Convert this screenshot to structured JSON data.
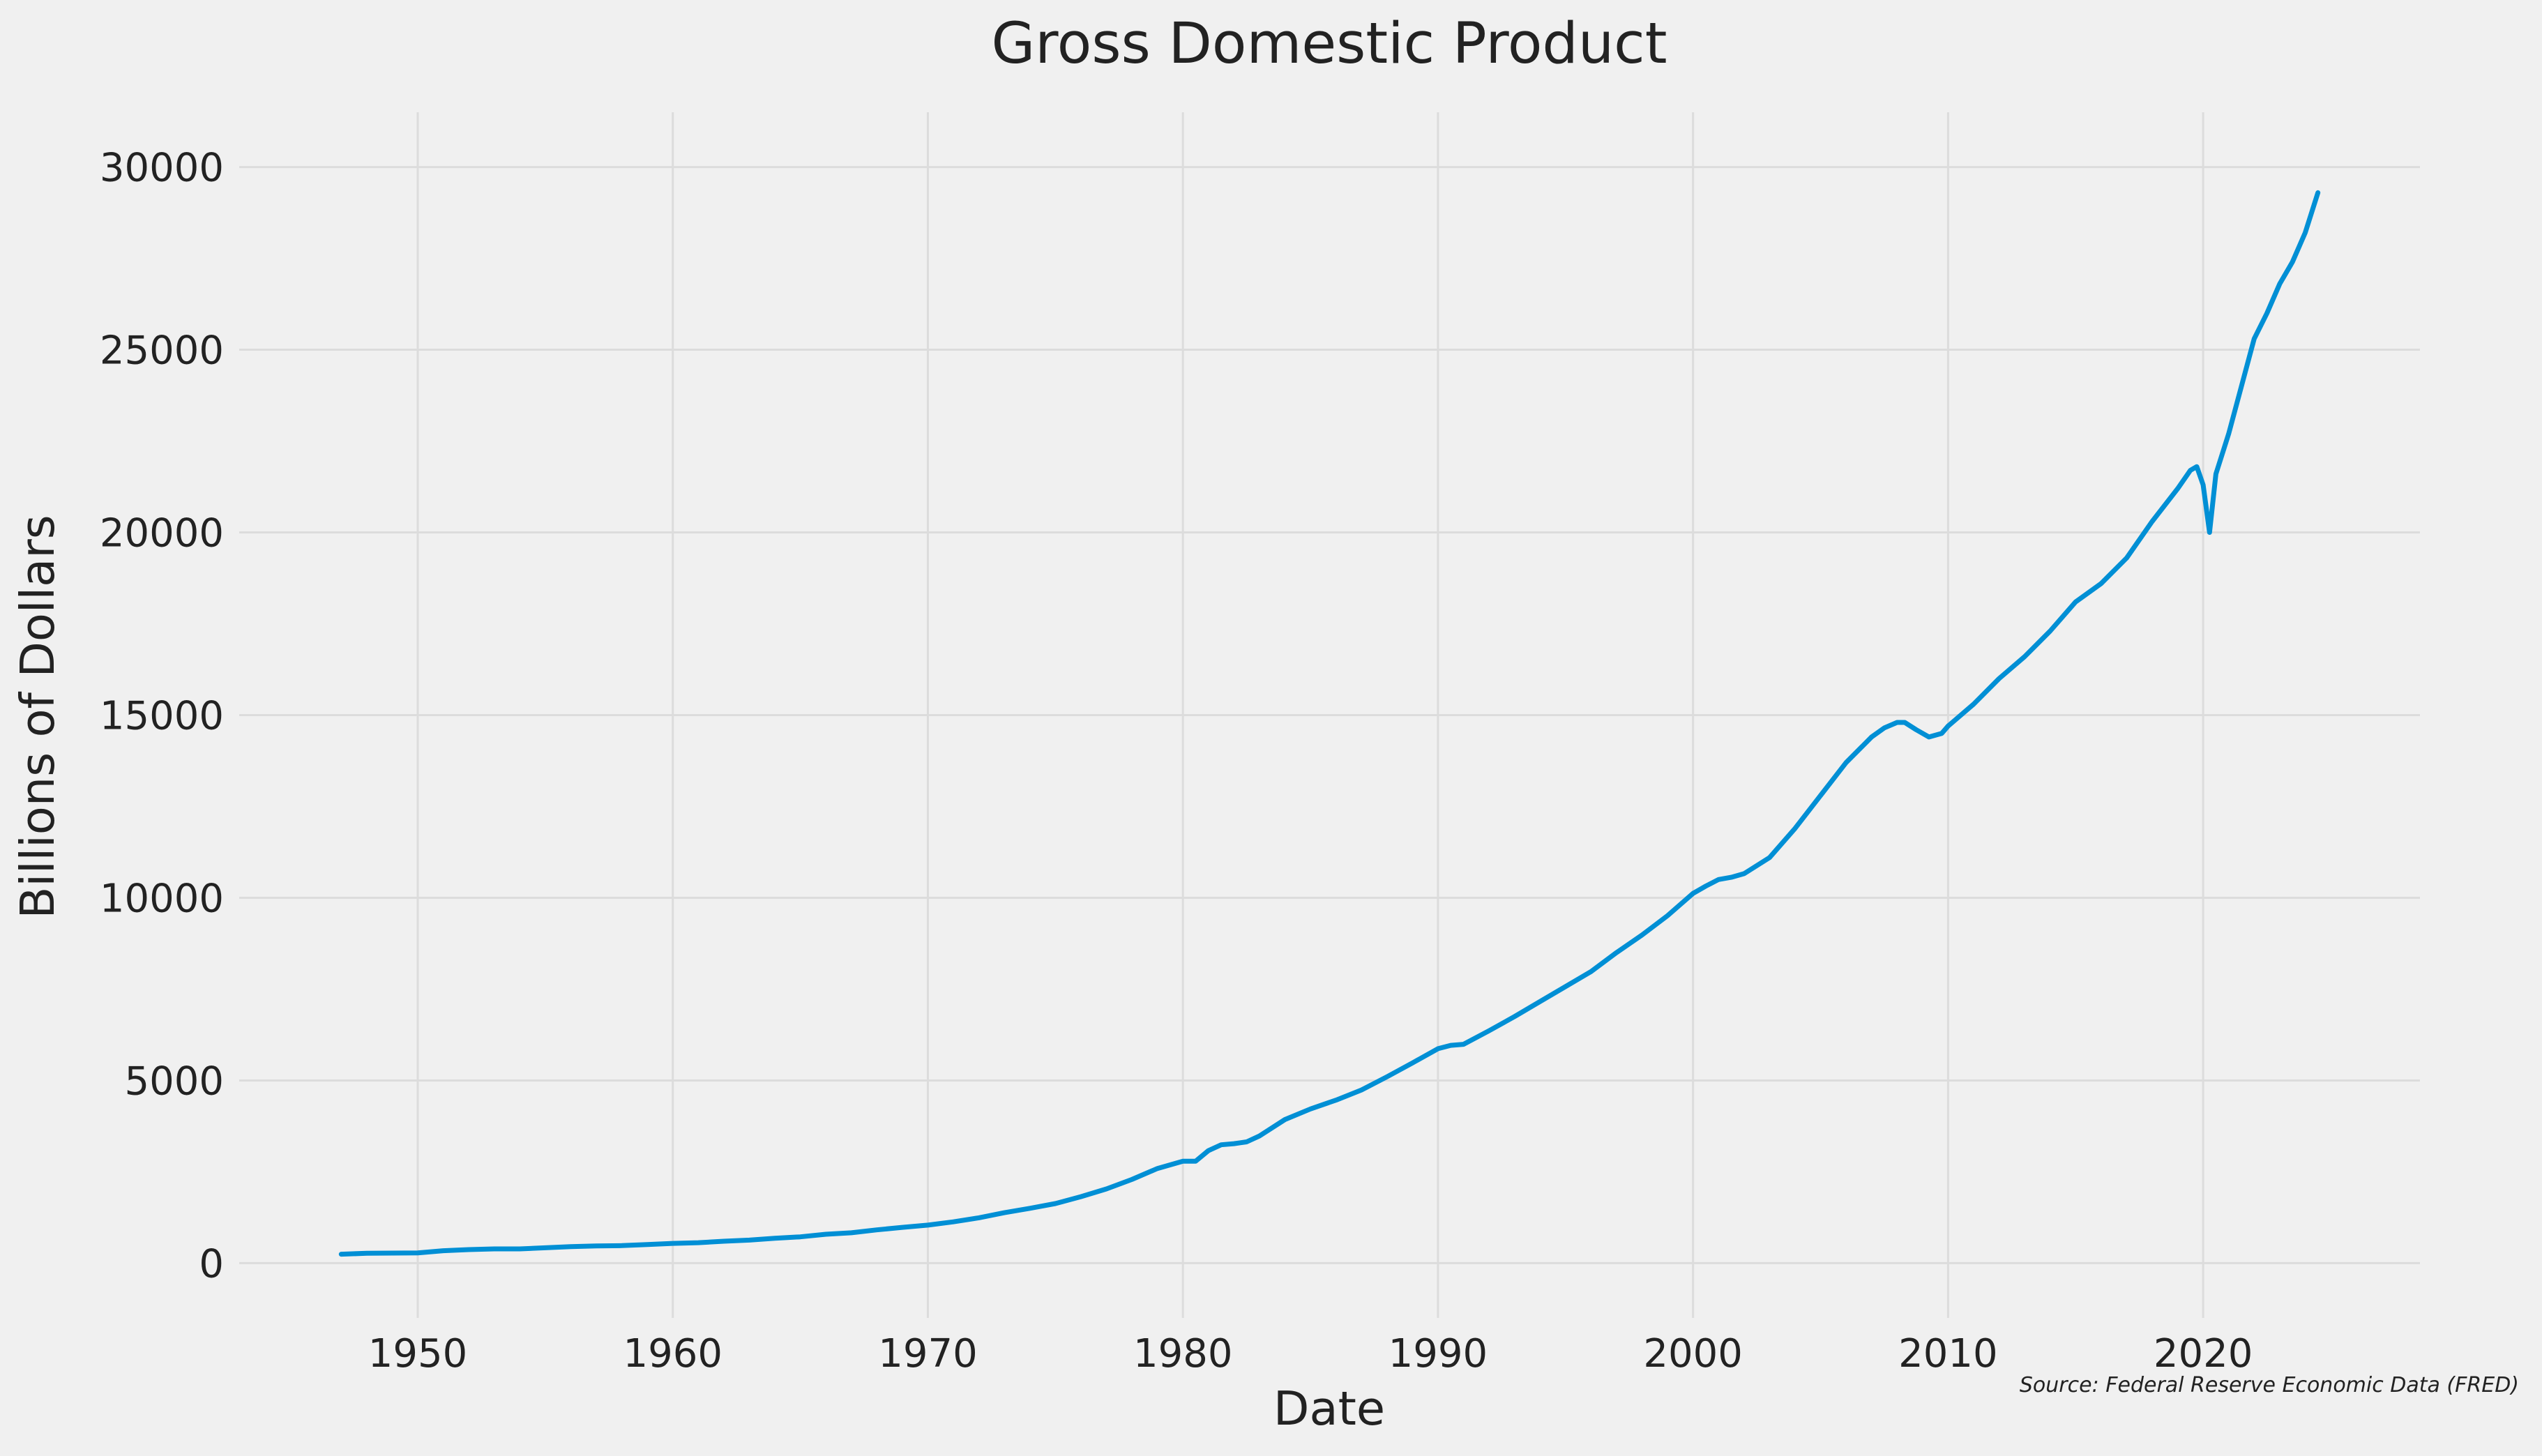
{
  "chart_data": {
    "type": "line",
    "title": "Gross Domestic Product",
    "xlabel": "Date",
    "ylabel": "Billions of Dollars",
    "source": "Source: Federal Reserve Economic Data (FRED)",
    "xlim": [
      1943,
      2028.5
    ],
    "ylim": [
      -1500,
      31500
    ],
    "x_ticks": [
      1950,
      1960,
      1970,
      1980,
      1990,
      2000,
      2010,
      2020
    ],
    "y_ticks": [
      0,
      5000,
      10000,
      15000,
      20000,
      25000,
      30000
    ],
    "x_tick_labels": [
      "1950",
      "1960",
      "1970",
      "1980",
      "1990",
      "2000",
      "2010",
      "2020"
    ],
    "y_tick_labels": [
      "0",
      "5000",
      "10000",
      "15000",
      "20000",
      "25000",
      "30000"
    ],
    "grid": true,
    "legend": "none",
    "line_color": "#008fd5",
    "series": [
      {
        "x": [
          1947.0,
          1948.0,
          1949.0,
          1950.0,
          1951.0,
          1952.0,
          1953.0,
          1954.0,
          1955.0,
          1956.0,
          1957.0,
          1958.0,
          1959.0,
          1960.0,
          1961.0,
          1962.0,
          1963.0,
          1964.0,
          1965.0,
          1966.0,
          1967.0,
          1968.0,
          1969.0,
          1970.0,
          1971.0,
          1972.0,
          1973.0,
          1974.0,
          1975.0,
          1976.0,
          1977.0,
          1978.0,
          1979.0,
          1980.0,
          1980.5,
          1981.0,
          1981.5,
          1982.0,
          1982.5,
          1983.0,
          1984.0,
          1985.0,
          1986.0,
          1987.0,
          1988.0,
          1989.0,
          1990.0,
          1990.5,
          1991.0,
          1992.0,
          1993.0,
          1994.0,
          1995.0,
          1996.0,
          1997.0,
          1998.0,
          1999.0,
          2000.0,
          2000.5,
          2001.0,
          2001.5,
          2002.0,
          2003.0,
          2004.0,
          2005.0,
          2006.0,
          2007.0,
          2007.5,
          2008.0,
          2008.3,
          2008.75,
          2009.25,
          2009.75,
          2010.0,
          2011.0,
          2012.0,
          2013.0,
          2014.0,
          2015.0,
          2016.0,
          2017.0,
          2018.0,
          2019.0,
          2019.5,
          2019.75,
          2020.0,
          2020.25,
          2020.5,
          2021.0,
          2021.5,
          2022.0,
          2022.5,
          2023.0,
          2023.5,
          2024.0,
          2024.5
        ],
        "y": [
          245,
          270,
          275,
          280,
          340,
          370,
          390,
          390,
          420,
          450,
          470,
          480,
          510,
          540,
          560,
          600,
          630,
          680,
          720,
          790,
          830,
          910,
          980,
          1040,
          1130,
          1240,
          1380,
          1500,
          1630,
          1820,
          2030,
          2290,
          2590,
          2790,
          2790,
          3080,
          3240,
          3270,
          3320,
          3480,
          3930,
          4220,
          4460,
          4740,
          5100,
          5480,
          5870,
          5960,
          5990,
          6360,
          6750,
          7160,
          7570,
          7980,
          8500,
          8980,
          9510,
          10120,
          10320,
          10500,
          10560,
          10660,
          11100,
          11900,
          12800,
          13700,
          14400,
          14650,
          14800,
          14800,
          14600,
          14400,
          14500,
          14700,
          15300,
          16000,
          16600,
          17300,
          18100,
          18600,
          19300,
          20300,
          21200,
          21700,
          21800,
          21300,
          20000,
          21600,
          22700,
          24000,
          25300,
          26000,
          26800,
          27400,
          28200,
          29300
        ]
      }
    ]
  }
}
